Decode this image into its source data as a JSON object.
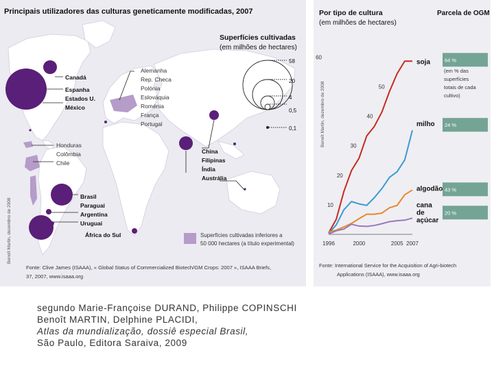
{
  "map": {
    "title": "Principais utilizadores das culturas geneticamente modificadas, 2007",
    "legend_title_1": "Superfícies cultivadas",
    "legend_title_2": "(em milhões de hectares)",
    "legend_values": [
      "58",
      "20",
      "4",
      "0,5",
      "0,1"
    ],
    "group_na": [
      "Canadá",
      "Espanha",
      "Estados U.",
      "México"
    ],
    "group_eu": [
      "Alemanha",
      "Rep. Checa",
      "Polónia",
      "Eslováquia",
      "Roménia",
      "França",
      "Portugal"
    ],
    "group_ca": [
      "Honduras",
      "Colômbia",
      "Chile"
    ],
    "group_sa": [
      "Brasil",
      "Paraguai",
      "Argentina",
      "Uruguai"
    ],
    "south_africa": "África do Sul",
    "group_asia": [
      "China",
      "Filipinas",
      "Índia",
      "Austrália"
    ],
    "small_legend_1": "Superfícies cultivadas inferiores a",
    "small_legend_2": "50 000 hectares (a título experimental)",
    "source_1": "Fonte: Clive James (ISAAA), « Global Status of Commercialized Biotech/GM Crops: 2007 », ISAAA Briefs,",
    "source_2": "37, 2007, www.isaaa.org",
    "credit": "Benoît Martin, dezembro de 2008",
    "colors": {
      "bubble": "#5a1f78",
      "experimental": "#b59cc9",
      "land": "#ffffff",
      "sea": "#e9e8ef"
    }
  },
  "chart": {
    "title_1": "Por tipo de cultura",
    "title_2": "(em milhões de hectares)",
    "share_title": "Parcela de OGM",
    "share_note": [
      "(em % das",
      "superfícies",
      "totais de cada",
      "cultivo)"
    ],
    "credit": "Benoît Martin, dezembro de 2008",
    "source_1": "Fonte: International Service for the Acquisition of Agri-biotech",
    "source_2": "Applications (ISAAA), www.isaaa.org",
    "label_cana_1": "cana",
    "label_cana_2": "de",
    "label_cana_3": "açúcar"
  },
  "chart_data": {
    "type": "line",
    "title": "Por tipo de cultura (em milhões de hectares)",
    "x_ticks": [
      "1996",
      "2000",
      "2005",
      "2007"
    ],
    "y_ticks": [
      10,
      20,
      30,
      40,
      50,
      60
    ],
    "xlim": [
      1996,
      2007
    ],
    "ylim": [
      0,
      64
    ],
    "series": [
      {
        "name": "soja",
        "share": "64 %",
        "color": "#c42a1e",
        "x": [
          1996,
          1997,
          1998,
          1999,
          2000,
          2001,
          2002,
          2003,
          2004,
          2005,
          2006,
          2007
        ],
        "values": [
          0.5,
          5.1,
          14.5,
          21.6,
          25.8,
          33.3,
          36.5,
          41.4,
          48.4,
          54.4,
          58.6,
          58.6
        ]
      },
      {
        "name": "milho",
        "share": "24 %",
        "color": "#3a9ad3",
        "x": [
          1996,
          1997,
          1998,
          1999,
          2000,
          2001,
          2002,
          2003,
          2004,
          2005,
          2006,
          2007
        ],
        "values": [
          0.3,
          3.2,
          8.3,
          11.1,
          10.3,
          9.8,
          12.4,
          15.5,
          19.3,
          21.2,
          25.2,
          35.2
        ]
      },
      {
        "name": "algodão",
        "share": "43 %",
        "color": "#e8882c",
        "x": [
          1996,
          1997,
          1998,
          1999,
          2000,
          2001,
          2002,
          2003,
          2004,
          2005,
          2006,
          2007
        ],
        "values": [
          0.8,
          1.4,
          2.5,
          3.7,
          5.3,
          6.8,
          6.8,
          7.2,
          9.0,
          9.8,
          13.4,
          15.0
        ]
      },
      {
        "name": "cana de açúcar",
        "share": "20 %",
        "color": "#9a78b8",
        "x": [
          1996,
          1997,
          1998,
          1999,
          2000,
          2001,
          2002,
          2003,
          2004,
          2005,
          2006,
          2007
        ],
        "values": [
          0.1,
          1.2,
          1.8,
          3.4,
          2.8,
          2.7,
          3.0,
          3.6,
          4.3,
          4.6,
          4.8,
          5.5
        ]
      }
    ]
  },
  "caption": {
    "line1": "segundo Marie-Françoise DURAND, Philippe COPINSCHI",
    "line2": "Benoît MARTIN, Delphine PLACIDI,",
    "line3": "Atlas da mundialização, dossiê especial Brasil,",
    "line4": "São Paulo, Editora Saraiva, 2009"
  }
}
